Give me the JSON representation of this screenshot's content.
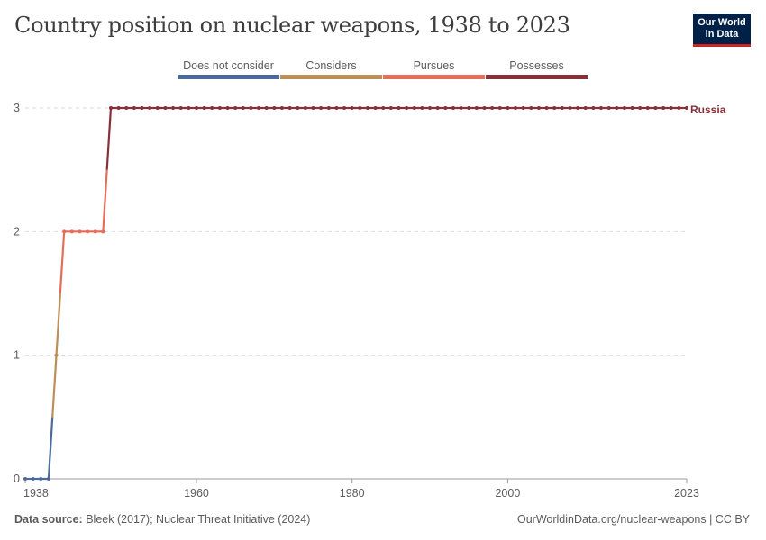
{
  "title": "Country position on nuclear weapons, 1938 to 2023",
  "logo": {
    "line1": "Our World",
    "line2": "in Data"
  },
  "footer": {
    "source_label": "Data source:",
    "source_text": "Bleek (2017); Nuclear Threat Initiative (2024)",
    "url_text": "OurWorldinData.org/nuclear-weapons | CC BY"
  },
  "chart_data": {
    "type": "line",
    "title": "Country position on nuclear weapons, 1938 to 2023",
    "xlabel": "",
    "ylabel": "",
    "xlim": [
      1938,
      2023
    ],
    "ylim": [
      0,
      3
    ],
    "x_ticks": [
      "1938",
      "1960",
      "1980",
      "2000",
      "2023"
    ],
    "x_tick_values": [
      1938,
      1960,
      1980,
      2000,
      2023
    ],
    "y_ticks": [
      "0",
      "1",
      "2",
      "3"
    ],
    "y_tick_values": [
      0,
      1,
      2,
      3
    ],
    "grid": "horizontal dashed",
    "legend_position": "top",
    "legend": [
      {
        "label": "Does not consider",
        "value": 0,
        "color": "#4c6a9c"
      },
      {
        "label": "Considers",
        "value": 1,
        "color": "#bc8e5a"
      },
      {
        "label": "Pursues",
        "value": 2,
        "color": "#e56e5a"
      },
      {
        "label": "Possesses",
        "value": 3,
        "color": "#883039"
      }
    ],
    "series": [
      {
        "name": "Russia",
        "color": "#883039",
        "points": [
          {
            "x": 1938,
            "y": 0
          },
          {
            "x": 1939,
            "y": 0
          },
          {
            "x": 1940,
            "y": 0
          },
          {
            "x": 1941,
            "y": 0
          },
          {
            "x": 1942,
            "y": 1
          },
          {
            "x": 1943,
            "y": 2
          },
          {
            "x": 1944,
            "y": 2
          },
          {
            "x": 1945,
            "y": 2
          },
          {
            "x": 1946,
            "y": 2
          },
          {
            "x": 1947,
            "y": 2
          },
          {
            "x": 1948,
            "y": 2
          },
          {
            "x": 1949,
            "y": 3
          },
          {
            "x": 1950,
            "y": 3
          },
          {
            "x": 1951,
            "y": 3
          },
          {
            "x": 1952,
            "y": 3
          },
          {
            "x": 1953,
            "y": 3
          },
          {
            "x": 1954,
            "y": 3
          },
          {
            "x": 1955,
            "y": 3
          },
          {
            "x": 1956,
            "y": 3
          },
          {
            "x": 1957,
            "y": 3
          },
          {
            "x": 1958,
            "y": 3
          },
          {
            "x": 1959,
            "y": 3
          },
          {
            "x": 1960,
            "y": 3
          },
          {
            "x": 1961,
            "y": 3
          },
          {
            "x": 1962,
            "y": 3
          },
          {
            "x": 1963,
            "y": 3
          },
          {
            "x": 1964,
            "y": 3
          },
          {
            "x": 1965,
            "y": 3
          },
          {
            "x": 1966,
            "y": 3
          },
          {
            "x": 1967,
            "y": 3
          },
          {
            "x": 1968,
            "y": 3
          },
          {
            "x": 1969,
            "y": 3
          },
          {
            "x": 1970,
            "y": 3
          },
          {
            "x": 1971,
            "y": 3
          },
          {
            "x": 1972,
            "y": 3
          },
          {
            "x": 1973,
            "y": 3
          },
          {
            "x": 1974,
            "y": 3
          },
          {
            "x": 1975,
            "y": 3
          },
          {
            "x": 1976,
            "y": 3
          },
          {
            "x": 1977,
            "y": 3
          },
          {
            "x": 1978,
            "y": 3
          },
          {
            "x": 1979,
            "y": 3
          },
          {
            "x": 1980,
            "y": 3
          },
          {
            "x": 1981,
            "y": 3
          },
          {
            "x": 1982,
            "y": 3
          },
          {
            "x": 1983,
            "y": 3
          },
          {
            "x": 1984,
            "y": 3
          },
          {
            "x": 1985,
            "y": 3
          },
          {
            "x": 1986,
            "y": 3
          },
          {
            "x": 1987,
            "y": 3
          },
          {
            "x": 1988,
            "y": 3
          },
          {
            "x": 1989,
            "y": 3
          },
          {
            "x": 1990,
            "y": 3
          },
          {
            "x": 1991,
            "y": 3
          },
          {
            "x": 1992,
            "y": 3
          },
          {
            "x": 1993,
            "y": 3
          },
          {
            "x": 1994,
            "y": 3
          },
          {
            "x": 1995,
            "y": 3
          },
          {
            "x": 1996,
            "y": 3
          },
          {
            "x": 1997,
            "y": 3
          },
          {
            "x": 1998,
            "y": 3
          },
          {
            "x": 1999,
            "y": 3
          },
          {
            "x": 2000,
            "y": 3
          },
          {
            "x": 2001,
            "y": 3
          },
          {
            "x": 2002,
            "y": 3
          },
          {
            "x": 2003,
            "y": 3
          },
          {
            "x": 2004,
            "y": 3
          },
          {
            "x": 2005,
            "y": 3
          },
          {
            "x": 2006,
            "y": 3
          },
          {
            "x": 2007,
            "y": 3
          },
          {
            "x": 2008,
            "y": 3
          },
          {
            "x": 2009,
            "y": 3
          },
          {
            "x": 2010,
            "y": 3
          },
          {
            "x": 2011,
            "y": 3
          },
          {
            "x": 2012,
            "y": 3
          },
          {
            "x": 2013,
            "y": 3
          },
          {
            "x": 2014,
            "y": 3
          },
          {
            "x": 2015,
            "y": 3
          },
          {
            "x": 2016,
            "y": 3
          },
          {
            "x": 2017,
            "y": 3
          },
          {
            "x": 2018,
            "y": 3
          },
          {
            "x": 2019,
            "y": 3
          },
          {
            "x": 2020,
            "y": 3
          },
          {
            "x": 2021,
            "y": 3
          },
          {
            "x": 2022,
            "y": 3
          },
          {
            "x": 2023,
            "y": 3
          }
        ]
      }
    ]
  }
}
